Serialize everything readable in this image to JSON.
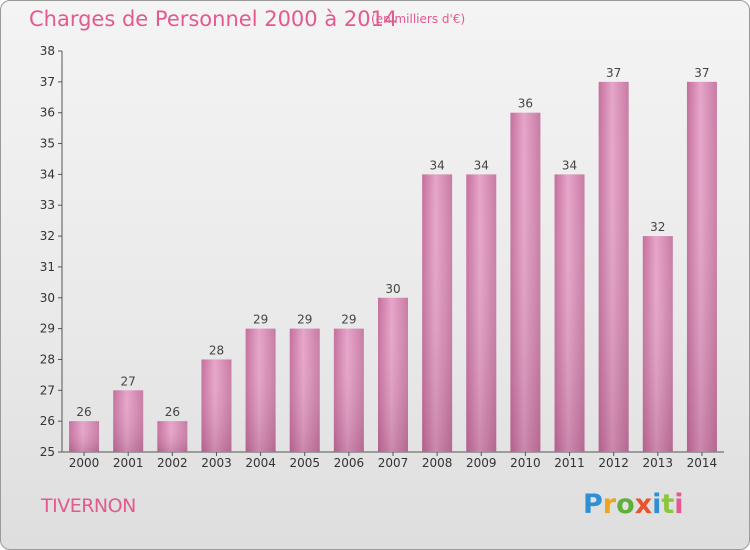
{
  "chart_data": {
    "type": "bar",
    "title": "Charges de Personnel 2000 à 2014",
    "subtitle": "(en milliers d'€)",
    "categories": [
      "2000",
      "2001",
      "2002",
      "2003",
      "2004",
      "2005",
      "2006",
      "2007",
      "2008",
      "2009",
      "2010",
      "2011",
      "2012",
      "2013",
      "2014"
    ],
    "values": [
      26,
      27,
      26,
      28,
      29,
      29,
      29,
      30,
      34,
      34,
      36,
      34,
      37,
      32,
      37
    ],
    "ylim": [
      25,
      38
    ],
    "yticks": [
      25,
      26,
      27,
      28,
      29,
      30,
      31,
      32,
      33,
      34,
      35,
      36,
      37,
      38
    ],
    "xlabel": "",
    "ylabel": "",
    "bar_color": "#d98cb5",
    "title_color": "#e25a8f"
  },
  "place_name": "TIVERNON",
  "logo": {
    "letters": [
      "P",
      "r",
      "o",
      "x",
      "i",
      "t",
      "i"
    ]
  }
}
